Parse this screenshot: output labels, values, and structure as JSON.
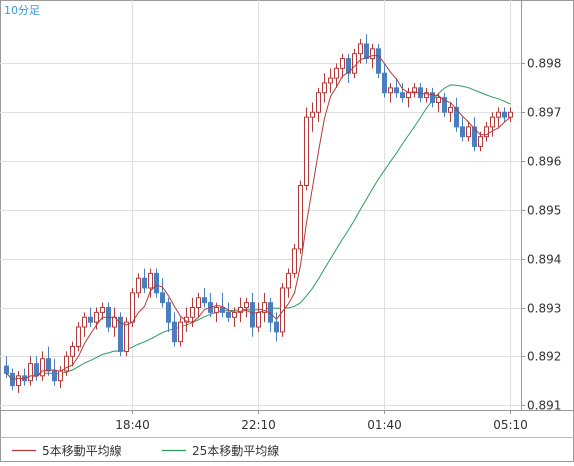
{
  "chart_data": {
    "type": "candlestick",
    "timeframe_label": "10分足",
    "ylim": [
      0.8909,
      0.8993
    ],
    "y_ticks": [
      0.891,
      0.892,
      0.893,
      0.894,
      0.895,
      0.896,
      0.897,
      0.898
    ],
    "y_tick_labels": [
      "0.891",
      "0.892",
      "0.893",
      "0.894",
      "0.895",
      "0.896",
      "0.897",
      "0.898"
    ],
    "x_ticks": [
      {
        "index": 21,
        "label": "18:40"
      },
      {
        "index": 42,
        "label": "22:10"
      },
      {
        "index": 63,
        "label": "01:40"
      },
      {
        "index": 84,
        "label": "05:10"
      }
    ],
    "grid": true,
    "legend": [
      {
        "name": "5本移動平均線",
        "color": "#b23a3a"
      },
      {
        "name": "25本移動平均線",
        "color": "#2e9a5c"
      }
    ],
    "colors": {
      "up": "#b23a3a",
      "down": "#4a7fbf",
      "ma5": "#b23a3a",
      "ma25": "#2e9a5c",
      "grid": "#e0e0e0",
      "axis": "#999999"
    },
    "candles": [
      [
        0.8918,
        0.892,
        0.89155,
        0.89165
      ],
      [
        0.89165,
        0.89175,
        0.8913,
        0.8914
      ],
      [
        0.8914,
        0.8917,
        0.89125,
        0.8916
      ],
      [
        0.8916,
        0.89175,
        0.8914,
        0.8915
      ],
      [
        0.8915,
        0.892,
        0.8914,
        0.89185
      ],
      [
        0.89185,
        0.892,
        0.8915,
        0.8916
      ],
      [
        0.8916,
        0.8921,
        0.8915,
        0.89195
      ],
      [
        0.89195,
        0.8922,
        0.8916,
        0.8917
      ],
      [
        0.8917,
        0.89195,
        0.8914,
        0.8915
      ],
      [
        0.8915,
        0.8918,
        0.89135,
        0.8917
      ],
      [
        0.8917,
        0.8921,
        0.8916,
        0.892
      ],
      [
        0.892,
        0.8923,
        0.8918,
        0.8922
      ],
      [
        0.8922,
        0.8927,
        0.8921,
        0.8926
      ],
      [
        0.8926,
        0.8929,
        0.8924,
        0.8928
      ],
      [
        0.8928,
        0.893,
        0.8926,
        0.8927
      ],
      [
        0.8927,
        0.893,
        0.89255,
        0.8929
      ],
      [
        0.8929,
        0.8931,
        0.89275,
        0.893
      ],
      [
        0.893,
        0.8931,
        0.8925,
        0.8926
      ],
      [
        0.8926,
        0.893,
        0.8924,
        0.8928
      ],
      [
        0.8928,
        0.8929,
        0.892,
        0.8921
      ],
      [
        0.8921,
        0.8928,
        0.892,
        0.8927
      ],
      [
        0.8927,
        0.8934,
        0.8926,
        0.8933
      ],
      [
        0.8933,
        0.8937,
        0.8932,
        0.8936
      ],
      [
        0.8936,
        0.8938,
        0.8933,
        0.8934
      ],
      [
        0.8934,
        0.8938,
        0.8932,
        0.8937
      ],
      [
        0.8937,
        0.8938,
        0.8932,
        0.8933
      ],
      [
        0.8933,
        0.8936,
        0.893,
        0.8931
      ],
      [
        0.8931,
        0.8932,
        0.8925,
        0.8927
      ],
      [
        0.8927,
        0.8929,
        0.8922,
        0.8923
      ],
      [
        0.8923,
        0.8928,
        0.8922,
        0.8927
      ],
      [
        0.8927,
        0.893,
        0.8925,
        0.8928
      ],
      [
        0.8928,
        0.8932,
        0.8926,
        0.893
      ],
      [
        0.893,
        0.8933,
        0.8928,
        0.8932
      ],
      [
        0.8932,
        0.8934,
        0.893,
        0.8931
      ],
      [
        0.8931,
        0.8933,
        0.8928,
        0.8929
      ],
      [
        0.8929,
        0.8931,
        0.8927,
        0.893
      ],
      [
        0.893,
        0.8933,
        0.8928,
        0.8929
      ],
      [
        0.8929,
        0.8931,
        0.8927,
        0.8928
      ],
      [
        0.8928,
        0.893,
        0.8926,
        0.8929
      ],
      [
        0.8929,
        0.8932,
        0.8927,
        0.893
      ],
      [
        0.893,
        0.8932,
        0.8928,
        0.8931
      ],
      [
        0.8931,
        0.8933,
        0.8924,
        0.8926
      ],
      [
        0.8926,
        0.8931,
        0.8925,
        0.8929
      ],
      [
        0.8929,
        0.8933,
        0.8927,
        0.8931
      ],
      [
        0.8931,
        0.8932,
        0.8925,
        0.8927
      ],
      [
        0.8927,
        0.8929,
        0.8923,
        0.8925
      ],
      [
        0.8925,
        0.8935,
        0.8924,
        0.8934
      ],
      [
        0.8934,
        0.8938,
        0.8932,
        0.8937
      ],
      [
        0.8937,
        0.8943,
        0.8936,
        0.8942
      ],
      [
        0.8942,
        0.8956,
        0.8941,
        0.8955
      ],
      [
        0.8955,
        0.8971,
        0.8954,
        0.8969
      ],
      [
        0.8969,
        0.8972,
        0.8966,
        0.897
      ],
      [
        0.897,
        0.8975,
        0.8968,
        0.8974
      ],
      [
        0.8974,
        0.8978,
        0.8972,
        0.8976
      ],
      [
        0.8976,
        0.8979,
        0.8974,
        0.8977
      ],
      [
        0.8977,
        0.898,
        0.8975,
        0.8979
      ],
      [
        0.8979,
        0.8982,
        0.8977,
        0.8981
      ],
      [
        0.8981,
        0.8982,
        0.8976,
        0.8978
      ],
      [
        0.8978,
        0.8983,
        0.8977,
        0.8982
      ],
      [
        0.8982,
        0.8985,
        0.898,
        0.8984
      ],
      [
        0.8984,
        0.8986,
        0.898,
        0.8981
      ],
      [
        0.8981,
        0.8984,
        0.8979,
        0.8983
      ],
      [
        0.8983,
        0.8984,
        0.8977,
        0.8978
      ],
      [
        0.8978,
        0.898,
        0.8973,
        0.8974
      ],
      [
        0.8974,
        0.8976,
        0.8972,
        0.8975
      ],
      [
        0.8975,
        0.8977,
        0.8973,
        0.8974
      ],
      [
        0.8974,
        0.8976,
        0.8972,
        0.8973
      ],
      [
        0.8973,
        0.8975,
        0.8971,
        0.8974
      ],
      [
        0.8974,
        0.8976,
        0.8973,
        0.8975
      ],
      [
        0.8975,
        0.8976,
        0.8972,
        0.8973
      ],
      [
        0.8973,
        0.8975,
        0.8972,
        0.8974
      ],
      [
        0.8974,
        0.8975,
        0.8971,
        0.8972
      ],
      [
        0.8972,
        0.8974,
        0.897,
        0.8973
      ],
      [
        0.8973,
        0.8974,
        0.8969,
        0.897
      ],
      [
        0.897,
        0.8972,
        0.8968,
        0.8971
      ],
      [
        0.8971,
        0.8973,
        0.8966,
        0.8967
      ],
      [
        0.8967,
        0.8969,
        0.8964,
        0.8965
      ],
      [
        0.8965,
        0.8968,
        0.8964,
        0.8967
      ],
      [
        0.8967,
        0.8969,
        0.8962,
        0.8963
      ],
      [
        0.8963,
        0.8966,
        0.8962,
        0.8965
      ],
      [
        0.8965,
        0.8968,
        0.8964,
        0.8967
      ],
      [
        0.8967,
        0.897,
        0.8965,
        0.8969
      ],
      [
        0.8969,
        0.8971,
        0.8967,
        0.897
      ],
      [
        0.897,
        0.8971,
        0.8968,
        0.8969
      ],
      [
        0.8969,
        0.8971,
        0.8968,
        0.897
      ]
    ]
  }
}
